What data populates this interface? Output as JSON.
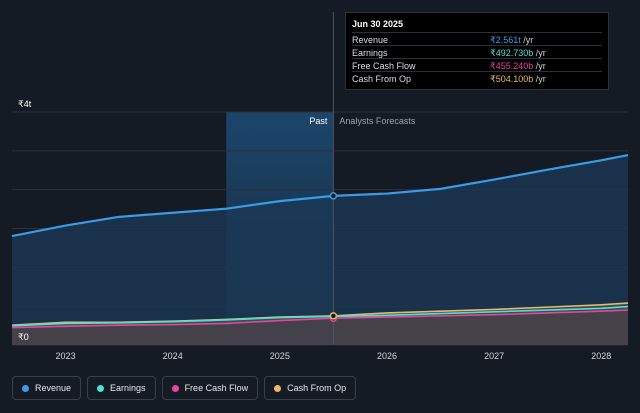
{
  "chart_data": {
    "type": "area",
    "y_tick_labels": [
      "₹4t",
      "₹0"
    ],
    "ylim": [
      0,
      4
    ],
    "x_tick_labels": [
      "2023",
      "2024",
      "2025",
      "2026",
      "2027",
      "2028"
    ],
    "xlim": [
      2022.5,
      2028.25
    ],
    "divider_x": 2025.5,
    "highlight_range": [
      2024.5,
      2025.5
    ],
    "region_labels": {
      "past": "Past",
      "forecast": "Analysts Forecasts"
    },
    "grid": true,
    "legend_position": "bottom-left",
    "series": [
      {
        "name": "Revenue",
        "color": "#3b9be8",
        "x": [
          2022.5,
          2023.0,
          2023.5,
          2024.0,
          2024.5,
          2025.0,
          2025.5,
          2026.0,
          2026.5,
          2027.0,
          2027.5,
          2028.0,
          2028.25
        ],
        "y": [
          1.87,
          2.05,
          2.2,
          2.27,
          2.34,
          2.47,
          2.56,
          2.6,
          2.68,
          2.84,
          3.01,
          3.17,
          3.26
        ]
      },
      {
        "name": "Earnings",
        "color": "#4de0d6",
        "x": [
          2022.5,
          2023.0,
          2023.5,
          2024.0,
          2024.5,
          2025.0,
          2025.5,
          2026.0,
          2026.5,
          2027.0,
          2027.5,
          2028.0,
          2028.25
        ],
        "y": [
          0.33,
          0.37,
          0.38,
          0.4,
          0.43,
          0.47,
          0.49,
          0.51,
          0.54,
          0.57,
          0.6,
          0.63,
          0.66
        ]
      },
      {
        "name": "Free Cash Flow",
        "color": "#e2479a",
        "x": [
          2022.5,
          2023.0,
          2023.5,
          2024.0,
          2024.5,
          2025.0,
          2025.5,
          2026.0,
          2026.5,
          2027.0,
          2027.5,
          2028.0,
          2028.25
        ],
        "y": [
          0.3,
          0.32,
          0.34,
          0.35,
          0.37,
          0.42,
          0.46,
          0.48,
          0.5,
          0.52,
          0.55,
          0.58,
          0.6
        ]
      },
      {
        "name": "Cash From Op",
        "color": "#e7b96a",
        "x": [
          2022.5,
          2023.0,
          2023.5,
          2024.0,
          2024.5,
          2025.0,
          2025.5,
          2026.0,
          2026.5,
          2027.0,
          2027.5,
          2028.0,
          2028.25
        ],
        "y": [
          0.34,
          0.39,
          0.39,
          0.41,
          0.44,
          0.48,
          0.5,
          0.55,
          0.58,
          0.61,
          0.65,
          0.69,
          0.72
        ]
      }
    ]
  },
  "tooltip": {
    "date": "Jun 30 2025",
    "rows": [
      {
        "label": "Revenue",
        "value": "₹2.561t",
        "unit": " /yr",
        "color": "#3b9be8"
      },
      {
        "label": "Earnings",
        "value": "₹492.730b",
        "unit": " /yr",
        "color": "#4de0d6"
      },
      {
        "label": "Free Cash Flow",
        "value": "₹455.240b",
        "unit": " /yr",
        "color": "#e2479a"
      },
      {
        "label": "Cash From Op",
        "value": "₹504.100b",
        "unit": " /yr",
        "color": "#e7b96a"
      }
    ]
  },
  "legend": [
    {
      "label": "Revenue",
      "color": "#3b9be8"
    },
    {
      "label": "Earnings",
      "color": "#4de0d6"
    },
    {
      "label": "Free Cash Flow",
      "color": "#e2479a"
    },
    {
      "label": "Cash From Op",
      "color": "#e7b96a"
    }
  ]
}
